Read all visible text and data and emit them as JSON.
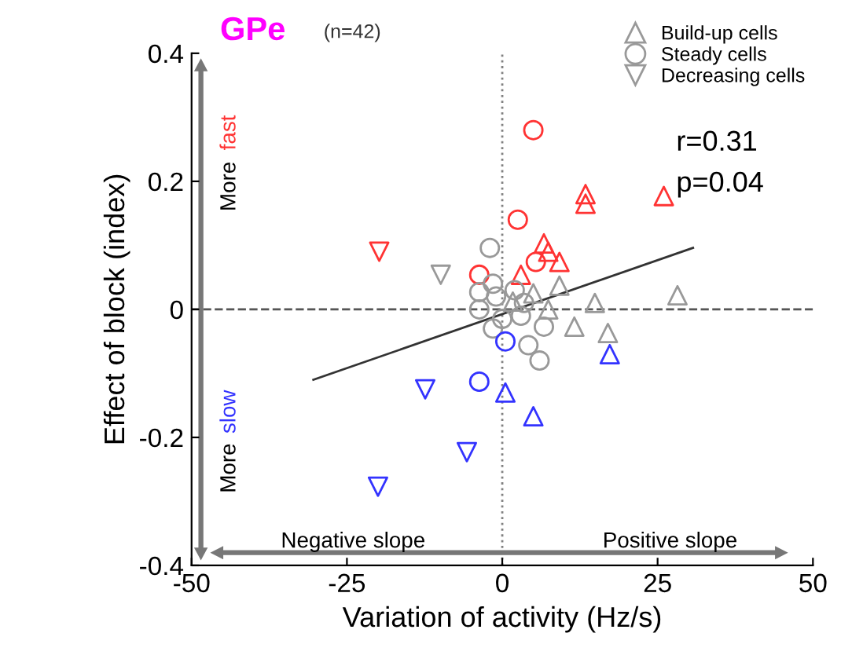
{
  "chart_data": {
    "type": "scatter",
    "title": "GPe",
    "subtitle": "(n=42)",
    "xlabel": "Variation of activity (Hz/s)",
    "ylabel": "Effect of block (index)",
    "xlim": [
      -50,
      50
    ],
    "ylim": [
      -0.4,
      0.4
    ],
    "xticks": [
      -50,
      -25,
      0,
      25,
      50
    ],
    "yticks": [
      -0.4,
      -0.2,
      0,
      0.2,
      0.4
    ],
    "grid": false,
    "legend": "top right",
    "ref_lines": [
      {
        "axis": "x",
        "value": 0,
        "line_style": "dotted",
        "color": "#808080"
      },
      {
        "axis": "y",
        "value": 0,
        "line_style": "dashed",
        "color": "#555555"
      }
    ],
    "annotations": [
      "r=0.31",
      "p=0.04",
      "More",
      "fast",
      "More",
      "slow",
      "Negative slope",
      "Positive slope"
    ],
    "series": [
      {
        "name": "Build-up cells",
        "marker": "triangle",
        "color": "#999999",
        "x": [
          13.4,
          13.4,
          26,
          6.7,
          7.4,
          9.2,
          3,
          9.2,
          5,
          14.9,
          28.2,
          1.7,
          7.4,
          11.6,
          17,
          17.3,
          0.5,
          5
        ],
        "values": [
          0.18,
          0.165,
          0.177,
          0.103,
          0.09,
          0.074,
          0.054,
          0.037,
          0.025,
          0.01,
          0.022,
          0.012,
          0.0,
          -0.027,
          -0.037,
          -0.07,
          -0.13,
          -0.167
        ],
        "colors": [
          "#ff3333",
          "#ff3333",
          "#ff3333",
          "#ff3333",
          "#ff3333",
          "#ff3333",
          "#ff3333",
          "#999999",
          "#999999",
          "#999999",
          "#999999",
          "#999999",
          "#999999",
          "#999999",
          "#999999",
          "#3333ff",
          "#3333ff",
          "#3333ff"
        ]
      },
      {
        "name": "Steady cells",
        "marker": "circle",
        "color": "#999999",
        "x": [
          5,
          2.5,
          5.4,
          -3.7,
          -2,
          -3.7,
          -3.7,
          6.7,
          4.2,
          6,
          -1,
          -1.5,
          3,
          2,
          0,
          3.5,
          -1.5,
          0.5,
          -3.7
        ],
        "values": [
          0.28,
          0.14,
          0.074,
          0.054,
          0.096,
          0.027,
          0.0,
          -0.027,
          -0.056,
          -0.08,
          0.02,
          -0.03,
          -0.01,
          0.03,
          -0.015,
          0.01,
          0.04,
          -0.05,
          -0.113
        ],
        "colors": [
          "#ff3333",
          "#ff3333",
          "#ff3333",
          "#ff3333",
          "#999999",
          "#999999",
          "#999999",
          "#999999",
          "#999999",
          "#999999",
          "#999999",
          "#999999",
          "#999999",
          "#999999",
          "#999999",
          "#999999",
          "#999999",
          "#3333ff",
          "#3333ff"
        ]
      },
      {
        "name": "Decreasing cells",
        "marker": "triangle_down",
        "color": "#999999",
        "x": [
          -19.8,
          -9.9,
          -12.4,
          -5.7,
          -20
        ],
        "values": [
          0.09,
          0.054,
          -0.125,
          -0.223,
          -0.277
        ],
        "colors": [
          "#ff3333",
          "#999999",
          "#3333ff",
          "#3333ff",
          "#3333ff"
        ]
      },
      {
        "type": "line",
        "color": "#333333",
        "x": [
          -30.4,
          30.7
        ],
        "values": [
          -0.11,
          0.096
        ]
      }
    ]
  }
}
